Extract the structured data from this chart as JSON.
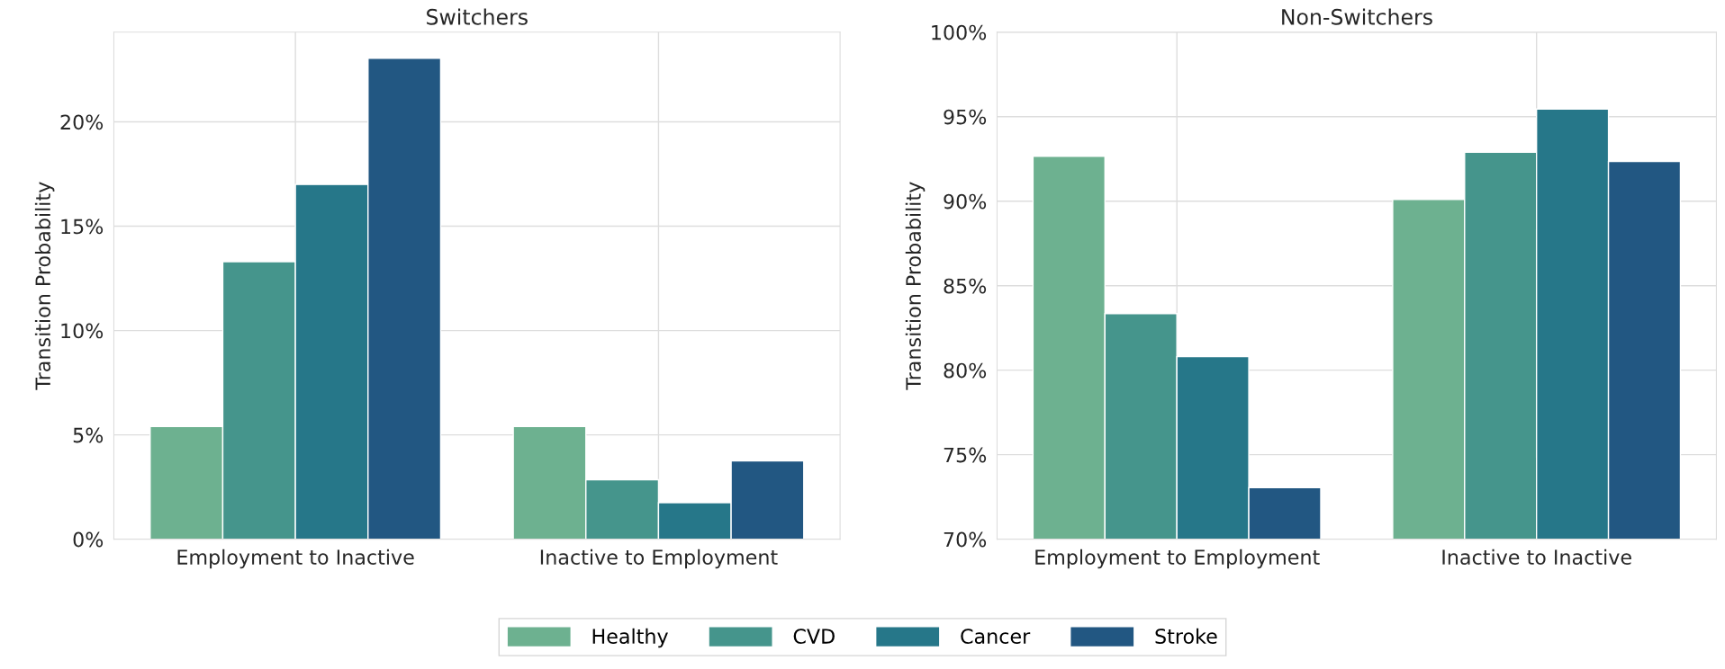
{
  "chart_data": [
    {
      "type": "bar",
      "title": "Switchers",
      "ylabel": "Transition Probability",
      "categories": [
        "Employment to Inactive",
        "Inactive to Employment"
      ],
      "series": [
        {
          "name": "Healthy",
          "color": "#6db190",
          "values": [
            5.4,
            5.4
          ]
        },
        {
          "name": "CVD",
          "color": "#45958c",
          "values": [
            13.3,
            2.85
          ]
        },
        {
          "name": "Cancer",
          "color": "#267789",
          "values": [
            17.0,
            1.75
          ]
        },
        {
          "name": "Stroke",
          "color": "#225782",
          "values": [
            23.05,
            3.75
          ]
        }
      ],
      "ylim": [
        0,
        24.3
      ],
      "yticks": [
        {
          "value": 0,
          "label": "0%"
        },
        {
          "value": 5,
          "label": "5%"
        },
        {
          "value": 10,
          "label": "10%"
        },
        {
          "value": 15,
          "label": "15%"
        },
        {
          "value": 20,
          "label": "20%"
        }
      ],
      "grid": true,
      "legend": "bottom"
    },
    {
      "type": "bar",
      "title": "Non-Switchers",
      "ylabel": "Transition Probability",
      "categories": [
        "Employment to Employment",
        "Inactive to Inactive"
      ],
      "series": [
        {
          "name": "Healthy",
          "color": "#6db190",
          "values": [
            92.65,
            90.1
          ]
        },
        {
          "name": "CVD",
          "color": "#45958c",
          "values": [
            83.35,
            92.9
          ]
        },
        {
          "name": "Cancer",
          "color": "#267789",
          "values": [
            80.8,
            95.45
          ]
        },
        {
          "name": "Stroke",
          "color": "#225782",
          "values": [
            73.05,
            92.35
          ]
        }
      ],
      "ylim": [
        70,
        100
      ],
      "yticks": [
        {
          "value": 70,
          "label": "70%"
        },
        {
          "value": 75,
          "label": "75%"
        },
        {
          "value": 80,
          "label": "80%"
        },
        {
          "value": 85,
          "label": "85%"
        },
        {
          "value": 90,
          "label": "90%"
        },
        {
          "value": 95,
          "label": "95%"
        },
        {
          "value": 100,
          "label": "100%"
        }
      ],
      "grid": true
    }
  ]
}
